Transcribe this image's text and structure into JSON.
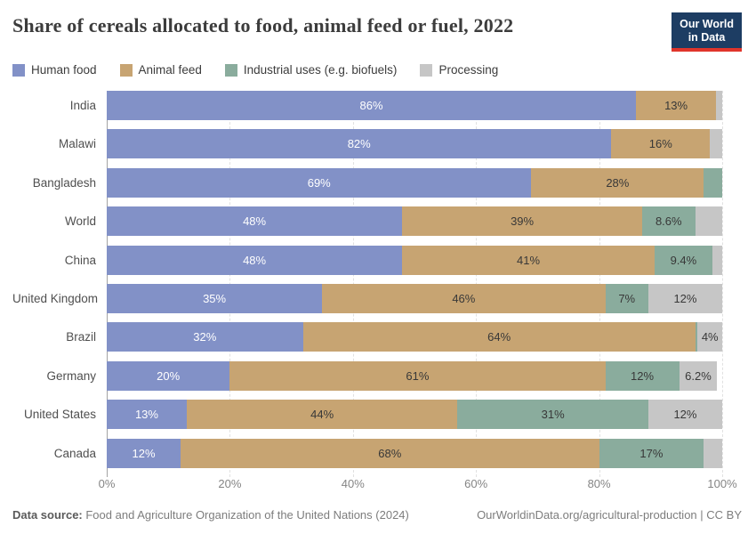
{
  "header": {
    "title": "Share of cereals allocated to food, animal feed or fuel, 2022",
    "logo_line1": "Our World",
    "logo_line2": "in Data",
    "logo_bg": "#1d3d63",
    "logo_accent": "#e0352b"
  },
  "chart_data": {
    "type": "bar",
    "orientation": "horizontal-stacked",
    "title": "Share of cereals allocated to food, animal feed or fuel, 2022",
    "xlim": [
      0,
      100
    ],
    "x_ticks": [
      "0%",
      "20%",
      "40%",
      "60%",
      "80%",
      "100%"
    ],
    "grid": "dashed-vertical",
    "legend_position": "top",
    "series": [
      {
        "name": "Human food",
        "color": "#8291c7",
        "text": "light"
      },
      {
        "name": "Animal feed",
        "color": "#c7a472",
        "text": "dark"
      },
      {
        "name": "Industrial uses (e.g. biofuels)",
        "color": "#8aac9d",
        "text": "dark"
      },
      {
        "name": "Processing",
        "color": "#c6c6c6",
        "text": "dark"
      }
    ],
    "label_colors": {
      "light": "#ffffff",
      "dark": "#383838"
    },
    "categories": [
      "India",
      "Malawi",
      "Bangladesh",
      "World",
      "China",
      "United Kingdom",
      "Brazil",
      "Germany",
      "United States",
      "Canada"
    ],
    "rows": [
      {
        "category": "India",
        "values": [
          {
            "series": "Human food",
            "value": 86,
            "label": "86%"
          },
          {
            "series": "Animal feed",
            "value": 13,
            "label": "13%"
          },
          {
            "series": "Processing",
            "value": 1,
            "label": ""
          }
        ]
      },
      {
        "category": "Malawi",
        "values": [
          {
            "series": "Human food",
            "value": 82,
            "label": "82%"
          },
          {
            "series": "Animal feed",
            "value": 16,
            "label": "16%"
          },
          {
            "series": "Processing",
            "value": 2,
            "label": ""
          }
        ]
      },
      {
        "category": "Bangladesh",
        "values": [
          {
            "series": "Human food",
            "value": 69,
            "label": "69%"
          },
          {
            "series": "Animal feed",
            "value": 28,
            "label": "28%"
          },
          {
            "series": "Industrial uses (e.g. biofuels)",
            "value": 3,
            "label": ""
          }
        ]
      },
      {
        "category": "World",
        "values": [
          {
            "series": "Human food",
            "value": 48,
            "label": "48%"
          },
          {
            "series": "Animal feed",
            "value": 39,
            "label": "39%"
          },
          {
            "series": "Industrial uses (e.g. biofuels)",
            "value": 8.6,
            "label": "8.6%"
          },
          {
            "series": "Processing",
            "value": 4.4,
            "label": ""
          }
        ]
      },
      {
        "category": "China",
        "values": [
          {
            "series": "Human food",
            "value": 48,
            "label": "48%"
          },
          {
            "series": "Animal feed",
            "value": 41,
            "label": "41%"
          },
          {
            "series": "Industrial uses (e.g. biofuels)",
            "value": 9.4,
            "label": "9.4%"
          },
          {
            "series": "Processing",
            "value": 1.6,
            "label": ""
          }
        ]
      },
      {
        "category": "United Kingdom",
        "values": [
          {
            "series": "Human food",
            "value": 35,
            "label": "35%"
          },
          {
            "series": "Animal feed",
            "value": 46,
            "label": "46%"
          },
          {
            "series": "Industrial uses (e.g. biofuels)",
            "value": 7,
            "label": "7%"
          },
          {
            "series": "Processing",
            "value": 12,
            "label": "12%"
          }
        ]
      },
      {
        "category": "Brazil",
        "values": [
          {
            "series": "Human food",
            "value": 32,
            "label": "32%"
          },
          {
            "series": "Animal feed",
            "value": 64,
            "label": "64%"
          },
          {
            "series": "Industrial uses (e.g. biofuels)",
            "value": 0.4,
            "label": ""
          },
          {
            "series": "Processing",
            "value": 4,
            "label": "4%"
          }
        ]
      },
      {
        "category": "Germany",
        "values": [
          {
            "series": "Human food",
            "value": 20,
            "label": "20%"
          },
          {
            "series": "Animal feed",
            "value": 61,
            "label": "61%"
          },
          {
            "series": "Industrial uses (e.g. biofuels)",
            "value": 12,
            "label": "12%"
          },
          {
            "series": "Processing",
            "value": 6.2,
            "label": "6.2%"
          }
        ]
      },
      {
        "category": "United States",
        "values": [
          {
            "series": "Human food",
            "value": 13,
            "label": "13%"
          },
          {
            "series": "Animal feed",
            "value": 44,
            "label": "44%"
          },
          {
            "series": "Industrial uses (e.g. biofuels)",
            "value": 31,
            "label": "31%"
          },
          {
            "series": "Processing",
            "value": 12,
            "label": "12%"
          }
        ]
      },
      {
        "category": "Canada",
        "values": [
          {
            "series": "Human food",
            "value": 12,
            "label": "12%"
          },
          {
            "series": "Animal feed",
            "value": 68,
            "label": "68%"
          },
          {
            "series": "Industrial uses (e.g. biofuels)",
            "value": 17,
            "label": "17%"
          },
          {
            "series": "Processing",
            "value": 3,
            "label": ""
          }
        ]
      }
    ]
  },
  "footer": {
    "source_label": "Data source:",
    "source_text": " Food and Agriculture Organization of the United Nations (2024)",
    "credit": "OurWorldinData.org/agricultural-production | CC BY"
  }
}
